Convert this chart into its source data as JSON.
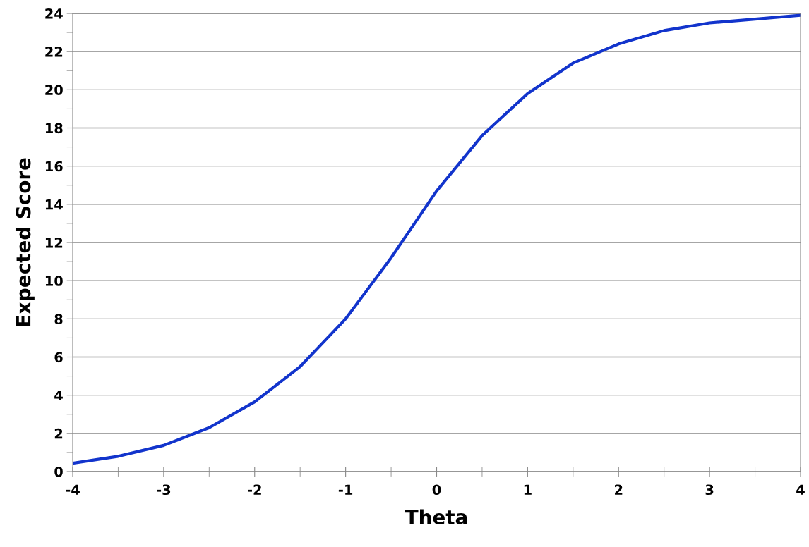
{
  "chart_data": {
    "type": "line",
    "xlabel": "Theta",
    "ylabel": "Expected Score",
    "x": [
      -4,
      -3.5,
      -3,
      -2.5,
      -2,
      -1.5,
      -1,
      -0.5,
      0,
      0.5,
      1,
      1.5,
      2,
      2.5,
      3,
      3.5,
      4
    ],
    "series": [
      {
        "color": "#1234cc",
        "values": [
          0.44,
          0.8,
          1.37,
          2.3,
          3.65,
          5.5,
          8.0,
          11.2,
          14.7,
          17.6,
          19.8,
          21.4,
          22.4,
          23.1,
          23.5,
          23.7,
          23.9
        ]
      }
    ],
    "xlim": [
      -4,
      4
    ],
    "xticks": [
      -4,
      -3,
      -2,
      -1,
      0,
      1,
      2,
      3,
      4
    ],
    "ylim": [
      0,
      24
    ],
    "yticks": [
      0,
      2,
      4,
      6,
      8,
      10,
      12,
      14,
      16,
      18,
      20,
      22,
      24
    ],
    "grid": "y",
    "marker": "none",
    "line_style": "solid"
  }
}
